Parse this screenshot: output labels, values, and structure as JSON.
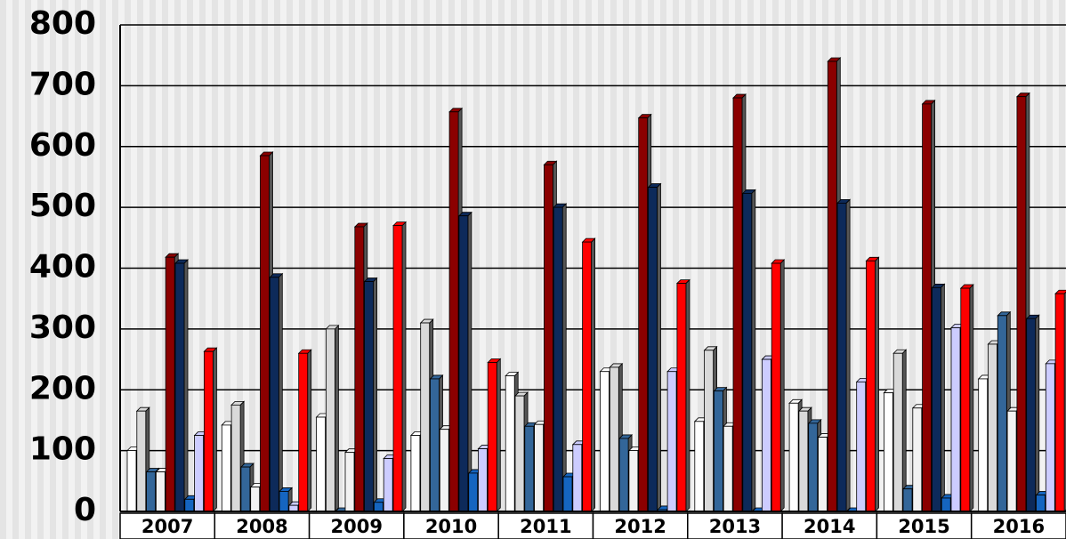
{
  "chart_data": {
    "type": "bar",
    "categories": [
      "2007",
      "2008",
      "2009",
      "2010",
      "2011",
      "2012",
      "2013",
      "2014",
      "2015",
      "2016"
    ],
    "series": [
      {
        "color": "#ffffff",
        "values": [
          100,
          142,
          155,
          125,
          223,
          230,
          148,
          178,
          195,
          218
        ]
      },
      {
        "color": "#d9d9d9",
        "values": [
          165,
          175,
          300,
          310,
          190,
          237,
          265,
          165,
          260,
          275
        ]
      },
      {
        "color": "#336699",
        "values": [
          65,
          73,
          0,
          218,
          140,
          120,
          198,
          145,
          37,
          322
        ]
      },
      {
        "color": "#f2f2f2",
        "values": [
          65,
          40,
          97,
          135,
          143,
          100,
          140,
          122,
          170,
          165
        ]
      },
      {
        "color": "#8b0000",
        "values": [
          418,
          585,
          468,
          657,
          570,
          647,
          680,
          740,
          670,
          682
        ]
      },
      {
        "color": "#0d2a5a",
        "values": [
          408,
          385,
          378,
          486,
          500,
          533,
          523,
          507,
          368,
          317
        ]
      },
      {
        "color": "#1565c0",
        "values": [
          20,
          33,
          15,
          63,
          57,
          3,
          0,
          0,
          22,
          27
        ]
      },
      {
        "color": "#ccccff",
        "values": [
          125,
          10,
          87,
          103,
          110,
          230,
          250,
          213,
          302,
          243
        ]
      },
      {
        "color": "#ff0000",
        "values": [
          263,
          260,
          470,
          245,
          443,
          375,
          408,
          412,
          367,
          358
        ]
      }
    ],
    "ylim": [
      0,
      800
    ],
    "yticks": [
      0,
      100,
      200,
      300,
      400,
      500,
      600,
      700,
      800
    ],
    "grid": true
  }
}
